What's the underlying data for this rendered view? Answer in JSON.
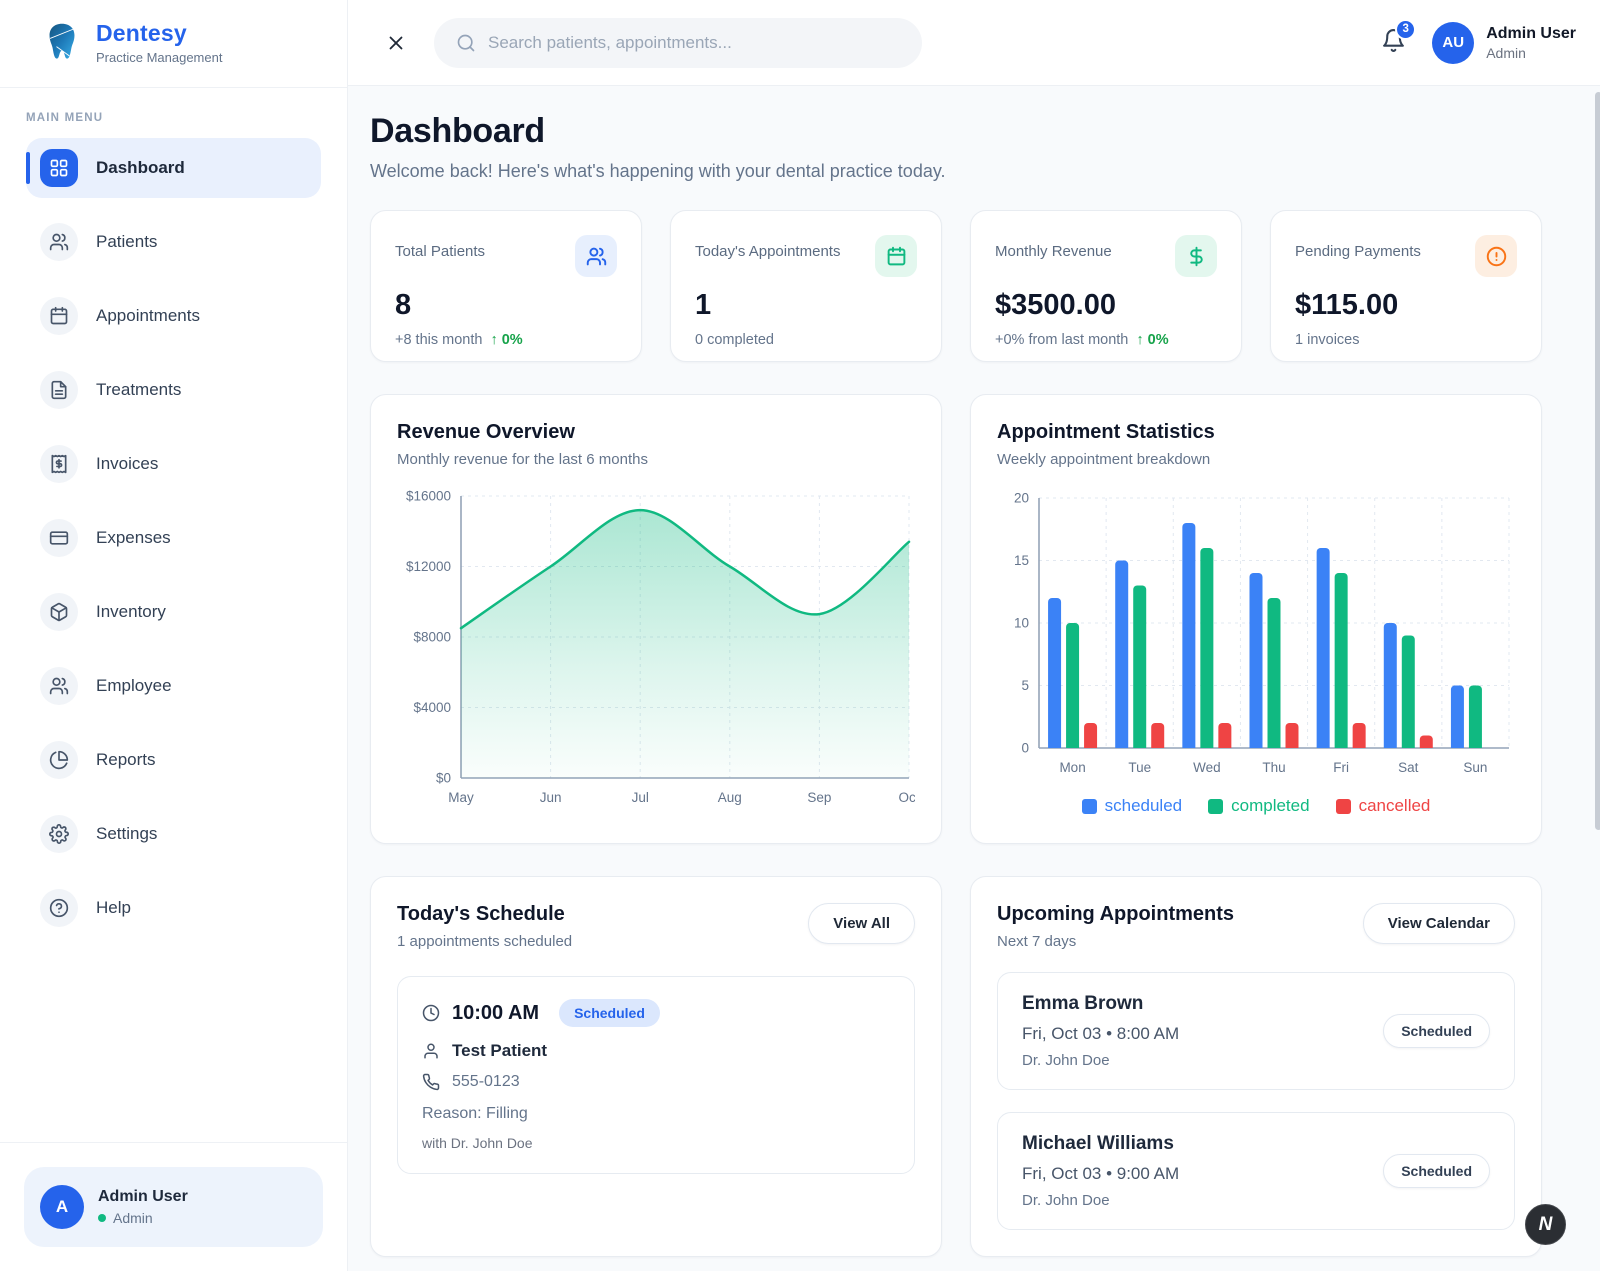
{
  "brand": {
    "name": "Dentesy",
    "tagline": "Practice Management"
  },
  "topbar": {
    "search_placeholder": "Search patients, appointments...",
    "notification_count": "3",
    "user_initials": "AU",
    "user_name": "Admin User",
    "user_role": "Admin"
  },
  "sidebar": {
    "section_label": "MAIN MENU",
    "items": [
      {
        "label": "Dashboard",
        "icon": "dashboard",
        "active": true
      },
      {
        "label": "Patients",
        "icon": "users",
        "active": false
      },
      {
        "label": "Appointments",
        "icon": "calendar",
        "active": false
      },
      {
        "label": "Treatments",
        "icon": "file-text",
        "active": false
      },
      {
        "label": "Invoices",
        "icon": "receipt",
        "active": false
      },
      {
        "label": "Expenses",
        "icon": "credit-card",
        "active": false
      },
      {
        "label": "Inventory",
        "icon": "package",
        "active": false
      },
      {
        "label": "Employee",
        "icon": "users",
        "active": false
      },
      {
        "label": "Reports",
        "icon": "pie-chart",
        "active": false
      },
      {
        "label": "Settings",
        "icon": "gear",
        "active": false
      },
      {
        "label": "Help",
        "icon": "help-circle",
        "active": false
      }
    ],
    "user": {
      "initial": "A",
      "name": "Admin User",
      "role": "Admin"
    }
  },
  "page": {
    "title": "Dashboard",
    "subtitle": "Welcome back! Here's what's happening with your dental practice today."
  },
  "stats": [
    {
      "label": "Total Patients",
      "value": "8",
      "sub": "+8 this month",
      "trend": "0%",
      "icon": "users",
      "icon_bg": "#e7effd",
      "icon_color": "#2563eb"
    },
    {
      "label": "Today's Appointments",
      "value": "1",
      "sub": "0 completed",
      "trend": "",
      "icon": "calendar",
      "icon_bg": "#e3f7ee",
      "icon_color": "#10b981"
    },
    {
      "label": "Monthly Revenue",
      "value": "$3500.00",
      "sub": "+0% from last month",
      "trend": "0%",
      "icon": "dollar",
      "icon_bg": "#e3f7ee",
      "icon_color": "#10b981"
    },
    {
      "label": "Pending Payments",
      "value": "$115.00",
      "sub": "1 invoices",
      "trend": "",
      "icon": "alert-circle",
      "icon_bg": "#fdeee1",
      "icon_color": "#f97316"
    }
  ],
  "revenue_card": {
    "title": "Revenue Overview",
    "subtitle": "Monthly revenue for the last 6 months"
  },
  "stats_card": {
    "title": "Appointment Statistics",
    "subtitle": "Weekly appointment breakdown"
  },
  "chart_data": [
    {
      "type": "area",
      "title": "Revenue Overview",
      "x": [
        "May",
        "Jun",
        "Jul",
        "Aug",
        "Sep",
        "Oct"
      ],
      "series": [
        {
          "name": "revenue",
          "values": [
            8500,
            12000,
            15200,
            12000,
            9300,
            13400
          ]
        }
      ],
      "ylim": [
        0,
        16000
      ],
      "yticks": [
        0,
        4000,
        8000,
        12000,
        16000
      ],
      "ytick_labels": [
        "$0",
        "$4000",
        "$8000",
        "$12000",
        "$16000"
      ],
      "line_color": "#10b981",
      "grid": true,
      "legend_position": "none"
    },
    {
      "type": "bar",
      "title": "Appointment Statistics",
      "categories": [
        "Mon",
        "Tue",
        "Wed",
        "Thu",
        "Fri",
        "Sat",
        "Sun"
      ],
      "series": [
        {
          "name": "scheduled",
          "color": "#3b82f6",
          "values": [
            12,
            15,
            18,
            14,
            16,
            10,
            5
          ]
        },
        {
          "name": "completed",
          "color": "#10b981",
          "values": [
            10,
            13,
            16,
            12,
            14,
            9,
            5
          ]
        },
        {
          "name": "cancelled",
          "color": "#ef4444",
          "values": [
            2,
            2,
            2,
            2,
            2,
            1,
            0
          ]
        }
      ],
      "ylim": [
        0,
        20
      ],
      "yticks": [
        0,
        5,
        10,
        15,
        20
      ],
      "grid": true,
      "legend_position": "bottom"
    }
  ],
  "today_schedule": {
    "title": "Today's Schedule",
    "subtitle": "1 appointments scheduled",
    "action": "View All",
    "appointment": {
      "time": "10:00 AM",
      "status": "Scheduled",
      "patient": "Test Patient",
      "phone": "555-0123",
      "reason": "Reason: Filling",
      "doctor": "with Dr. John Doe"
    }
  },
  "upcoming": {
    "title": "Upcoming Appointments",
    "subtitle": "Next 7 days",
    "action": "View Calendar",
    "items": [
      {
        "name": "Emma Brown",
        "datetime": "Fri, Oct 03 • 8:00 AM",
        "doctor": "Dr. John Doe",
        "status": "Scheduled"
      },
      {
        "name": "Michael Williams",
        "datetime": "Fri, Oct 03 • 9:00 AM",
        "doctor": "Dr. John Doe",
        "status": "Scheduled"
      }
    ]
  },
  "floating_button_label": "N",
  "colors": {
    "accent": "#2563eb",
    "blue": "#3b82f6",
    "green": "#10b981",
    "red": "#ef4444",
    "orange": "#f97316"
  }
}
